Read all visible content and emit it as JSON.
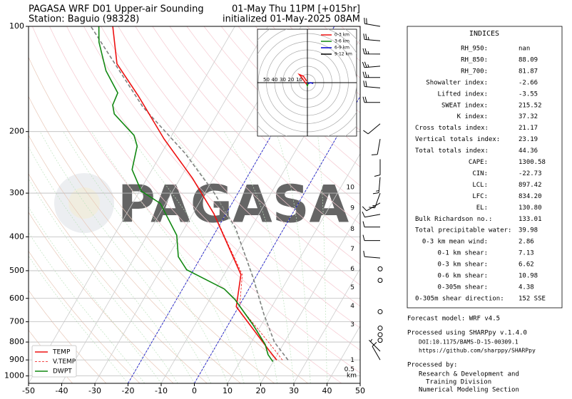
{
  "chart_data": {
    "type": "skewt",
    "title": "PAGASA WRF D01 Upper-air Sounding",
    "subtitle": "Station: Baguio (98328)",
    "valid_time": "01-May Thu 11PM [+015hr]",
    "init_time": "initialized 01-May-2025 08AM",
    "watermark": "PAGASA",
    "xlim": [
      -50,
      50
    ],
    "xticks": [
      -50,
      -40,
      -30,
      -20,
      -10,
      0,
      10,
      20,
      30,
      40,
      50
    ],
    "ylim": [
      1050,
      100
    ],
    "yticks": [
      100,
      200,
      300,
      400,
      500,
      600,
      700,
      800,
      900,
      1000
    ],
    "log_y": true,
    "grid": true,
    "legend": "lower left",
    "highlight_isotherms": [
      -20,
      0
    ],
    "highlight_color": "#0000cc",
    "series": [
      {
        "name": "TEMP",
        "color": "#ee1111",
        "style": "solid",
        "pressure": [
          901,
          848,
          747,
          634,
          513,
          425,
          344,
          272,
          210,
          158,
          128,
          100
        ],
        "values": [
          20.8,
          17.0,
          9.3,
          -0.7,
          -4.9,
          -13.7,
          -23.6,
          -36.3,
          -51.7,
          -67.0,
          -79.0,
          -86.8
        ]
      },
      {
        "name": "V.TEMP",
        "color": "#ee1111",
        "style": "dashed",
        "pressure": [
          901,
          848,
          747,
          634,
          513,
          425,
          344,
          272,
          210,
          158,
          128,
          100
        ],
        "values": [
          22.5,
          18.8,
          10.8,
          0.3,
          -4.5,
          -13.5,
          -23.5,
          -36.3,
          -51.7,
          -67.0,
          -79.0,
          -86.8
        ]
      },
      {
        "name": "DWPT",
        "color": "#118811",
        "style": "solid",
        "pressure": [
          910,
          869,
          813,
          713,
          605,
          564,
          497,
          456,
          396,
          321,
          296,
          257,
          220,
          205,
          178,
          168,
          155,
          134,
          111,
          100
        ],
        "values": [
          19.9,
          17.2,
          14.6,
          7.4,
          -2.3,
          -7.4,
          -22.1,
          -26.9,
          -31.1,
          -41.6,
          -49.5,
          -56.0,
          -58.6,
          -61.4,
          -71.1,
          -73.1,
          -73.7,
          -81.1,
          -88.2,
          -91.0
        ]
      }
    ],
    "parcel": {
      "color": "#808080",
      "pressure": [
        901,
        801,
        664,
        525,
        377,
        299,
        231,
        170,
        128,
        100
      ],
      "values": [
        24.2,
        17.0,
        8.8,
        -0.6,
        -14.7,
        -27.3,
        -42.8,
        -63.7,
        -79.6,
        -93.4
      ]
    },
    "height_unit": "km",
    "height_km": [
      10,
      9,
      8,
      7,
      6,
      5,
      4,
      3,
      1,
      0.5
    ],
    "height_pressure": [
      289,
      331,
      380,
      433,
      494,
      558,
      631,
      713,
      901,
      959
    ],
    "winds": {
      "pressure": [
        100,
        110,
        120,
        130,
        140,
        150,
        165,
        190,
        210,
        240,
        270,
        300,
        320,
        345,
        375,
        410,
        460,
        494,
        533,
        655,
        730,
        762,
        791,
        850,
        900
      ],
      "direction": [
        280,
        275,
        270,
        265,
        270,
        275,
        270,
        230,
        190,
        180,
        185,
        200,
        240,
        260,
        270,
        270,
        275,
        0,
        0,
        0,
        0,
        0,
        0,
        315,
        330
      ],
      "speed": [
        20,
        25,
        25,
        25,
        25,
        20,
        20,
        10,
        10,
        10,
        15,
        15,
        10,
        10,
        10,
        10,
        10,
        0,
        0,
        0,
        0,
        0,
        0,
        5,
        10
      ]
    },
    "hodograph": {
      "rings": [
        10,
        20,
        30,
        40,
        50
      ],
      "segments": [
        {
          "name": "0-3 km",
          "color": "#ee1111",
          "u": [
            -1,
            -6,
            -10,
            -5,
            -1
          ],
          "v": [
            -2,
            5,
            10,
            8,
            2
          ]
        },
        {
          "name": "3-6 km",
          "color": "#118811",
          "u": [
            -1,
            0,
            1
          ],
          "v": [
            -2,
            -4,
            -1
          ]
        },
        {
          "name": "6-9 km",
          "color": "#0000cc",
          "u": [
            1,
            4,
            7
          ],
          "v": [
            -1,
            0,
            -1
          ]
        },
        {
          "name": "9-12 km",
          "color": "#000000",
          "u": [],
          "v": []
        }
      ]
    }
  },
  "indices": {
    "title": "INDICES",
    "rows": [
      [
        "RH_950:",
        "nan"
      ],
      [
        "RH_850:",
        "88.09"
      ],
      [
        "RH_700:",
        "81.87"
      ],
      [
        "Showalter index:",
        "-2.66"
      ],
      [
        "Lifted index:",
        "-3.55"
      ],
      [
        "SWEAT index:",
        "215.52"
      ],
      [
        "K index:",
        "37.32"
      ],
      [
        "Cross totals index:",
        "21.17"
      ],
      [
        "Vertical totals index:",
        "23.19"
      ],
      [
        "Total totals index:",
        "44.36"
      ],
      [
        "CAPE:",
        "1300.58"
      ],
      [
        "CIN:",
        "-22.73"
      ],
      [
        "LCL:",
        "897.42"
      ],
      [
        "LFC:",
        "834.20"
      ],
      [
        "EL:",
        "130.80"
      ],
      [
        "Bulk Richardson no.:",
        "133.01"
      ],
      [
        "Total precipitable water:",
        "39.98"
      ],
      [
        "0-3 km mean wind:",
        "2.86"
      ],
      [
        "0-1 km shear:",
        "7.13"
      ],
      [
        "0-3 km shear:",
        "6.62"
      ],
      [
        "0-6 km shear:",
        "10.98"
      ],
      [
        "0-305m shear:",
        "4.38"
      ],
      [
        "0-305m shear direction:",
        "152 SSE"
      ]
    ]
  },
  "footer": {
    "model": "Forecast model: WRF v4.5",
    "processed": "Processed using SHARPpy v.1.4.0",
    "doi": "DOI:10.1175/BAMS-D-15-00309.1",
    "url": "https://github.com/sharppy/SHARPpy",
    "by": "Processed by:",
    "org1": "Research & Development and",
    "org2": "Training Division",
    "org3": "Numerical Modeling Section"
  }
}
